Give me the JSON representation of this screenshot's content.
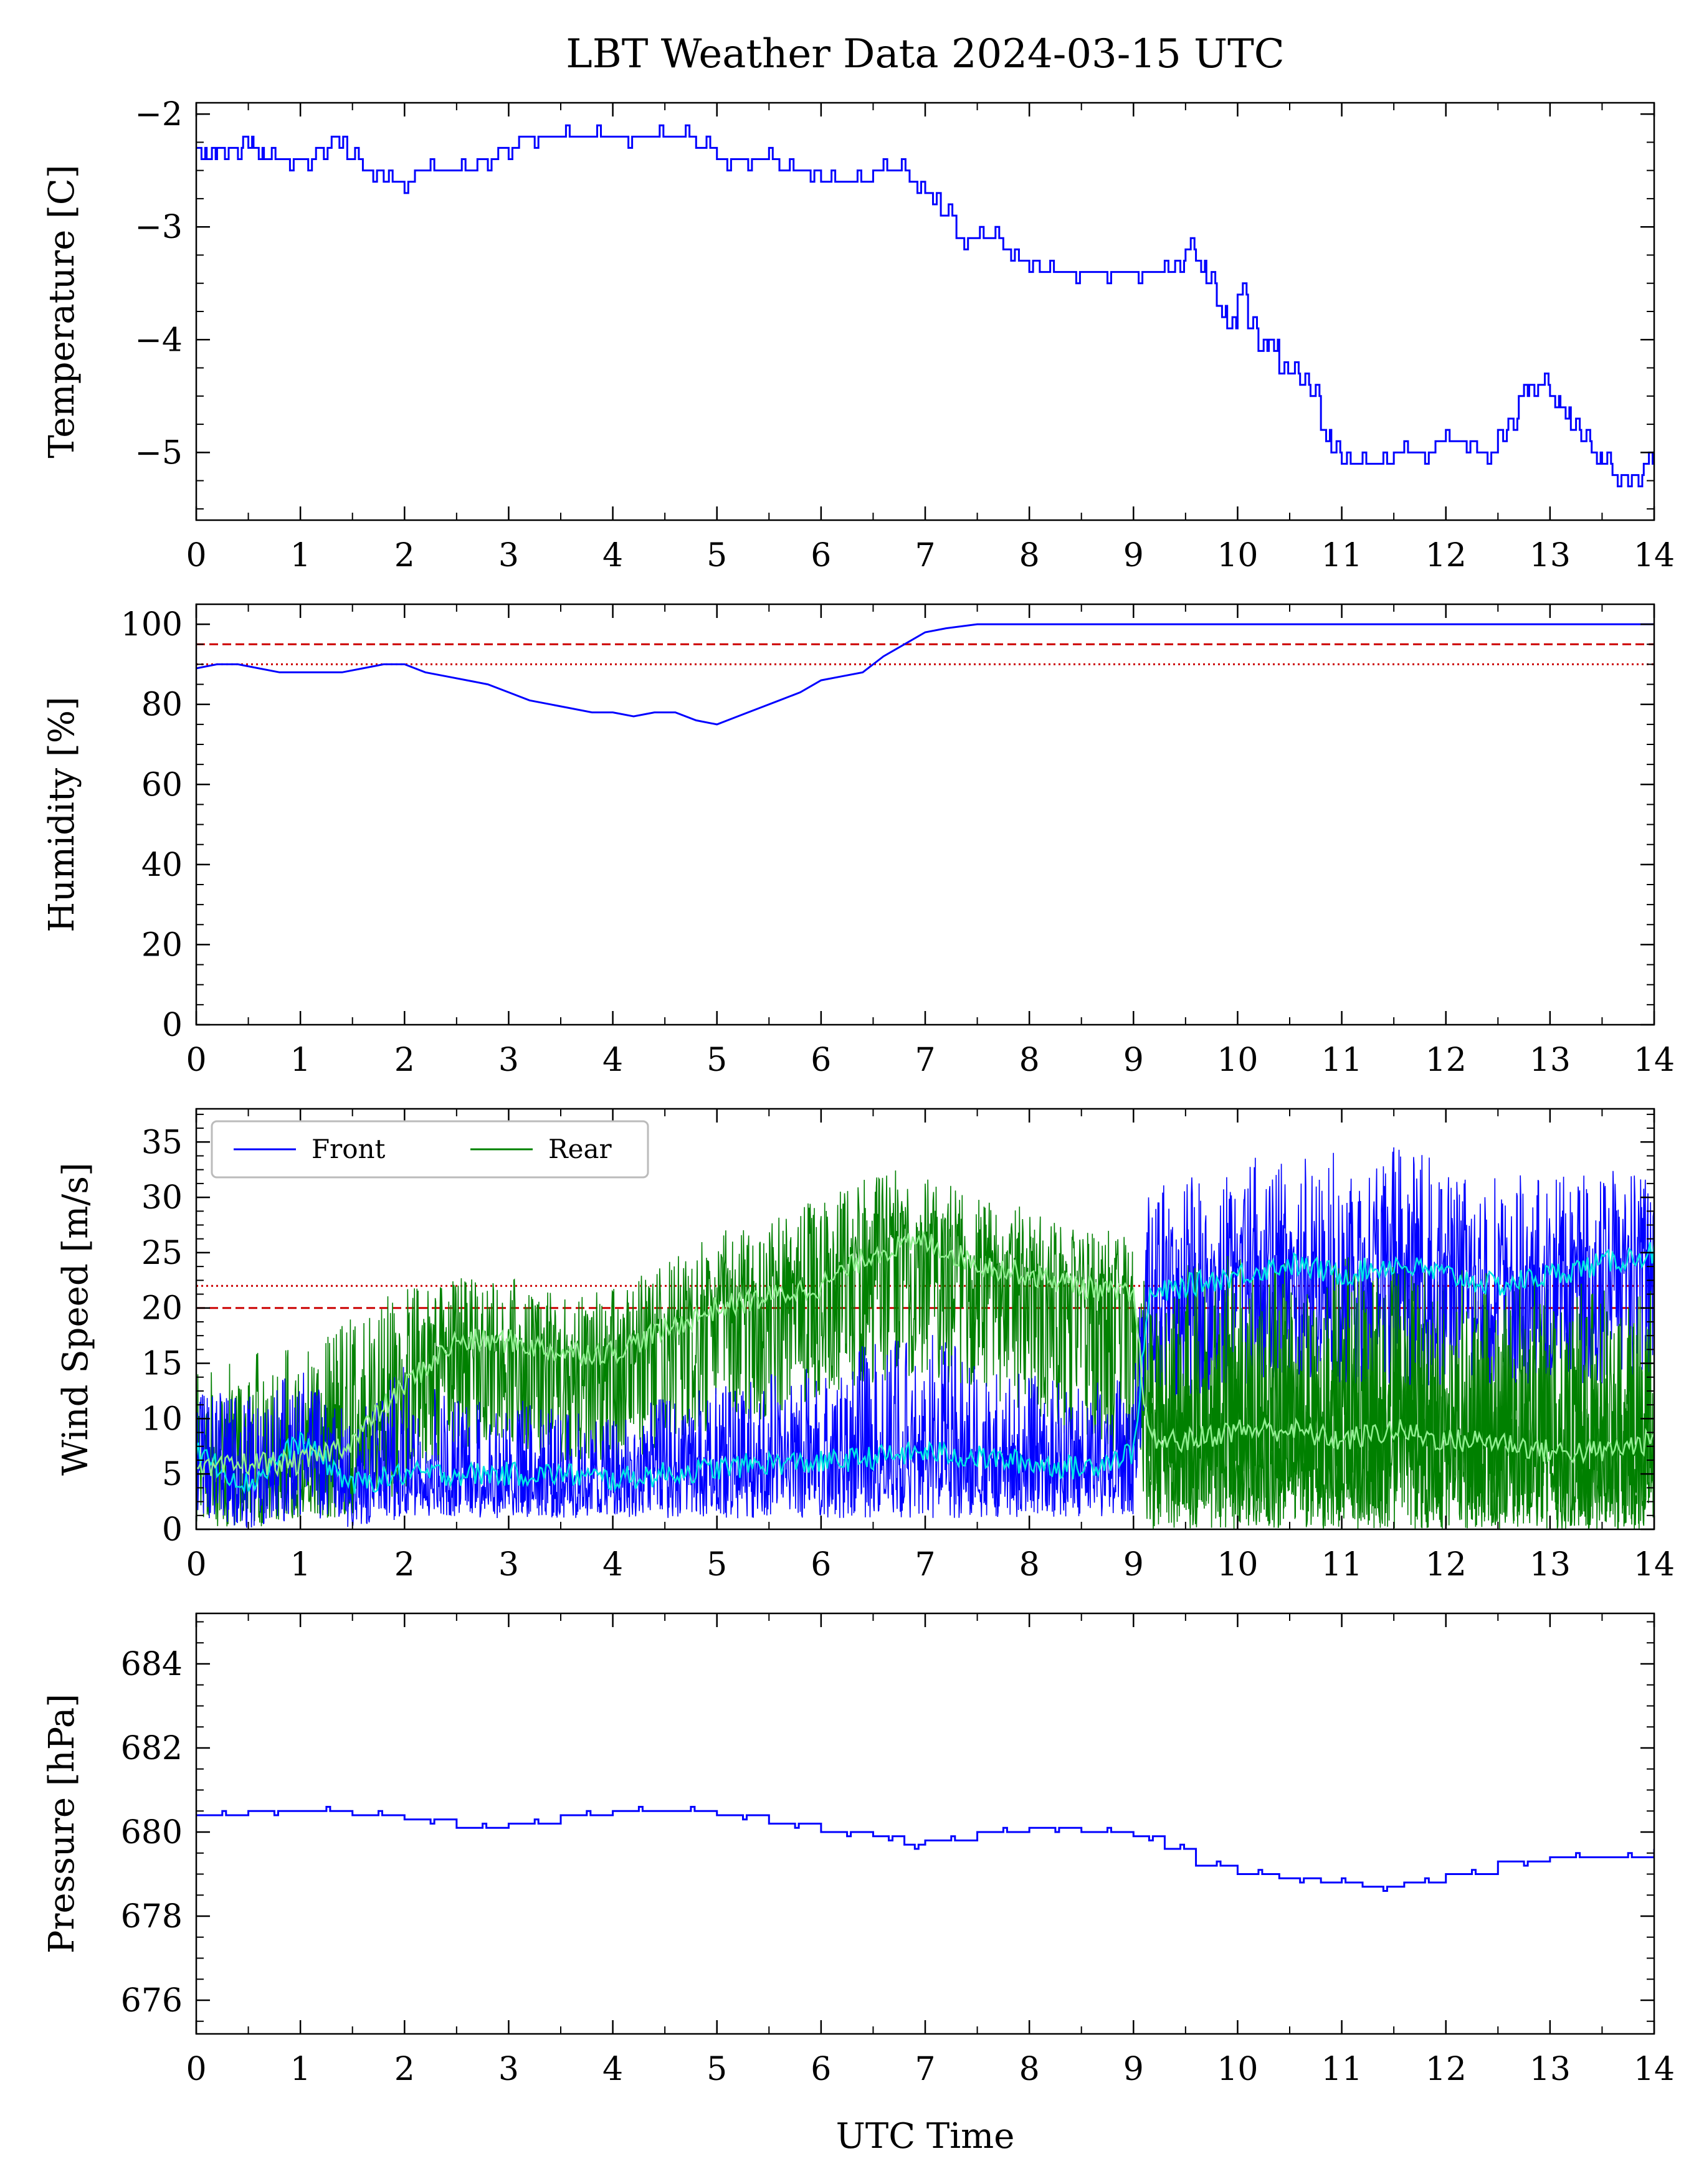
{
  "figure": {
    "title": "LBT Weather Data 2024-03-15 UTC",
    "xlabel": "UTC Time"
  },
  "colors": {
    "front": "#0000ff",
    "rear": "#008000",
    "front_smooth": "#00e5e5",
    "rear_smooth": "#90ee90",
    "threshold": "#cc0000",
    "axes": "#000000"
  },
  "chart_data": [
    {
      "type": "line",
      "ylabel": "Temperature [C]",
      "xlim": [
        0,
        14
      ],
      "ylim": [
        -5.6,
        -1.9
      ],
      "xticks": [
        "0",
        "1",
        "2",
        "3",
        "4",
        "5",
        "6",
        "7",
        "8",
        "9",
        "10",
        "11",
        "12",
        "13",
        "14"
      ],
      "yticks": [
        {
          "value": -5,
          "label": "−5"
        },
        {
          "value": -4,
          "label": "−4"
        },
        {
          "value": -3,
          "label": "−3"
        },
        {
          "value": -2,
          "label": "−2"
        }
      ],
      "series": [
        {
          "style": "step",
          "color": "#0000ff",
          "x": [
            0,
            0.1,
            0.2,
            0.35,
            0.45,
            0.55,
            0.65,
            0.8,
            1.0,
            1.15,
            1.3,
            1.45,
            1.6,
            1.8,
            1.9,
            2.1,
            2.4,
            2.7,
            2.9,
            3.1,
            3.4,
            3.7,
            4.0,
            4.3,
            4.6,
            4.8,
            5.0,
            5.2,
            5.4,
            5.6,
            5.8,
            6.0,
            6.2,
            6.5,
            6.7,
            6.85,
            7.0,
            7.15,
            7.3,
            7.45,
            7.6,
            7.75,
            7.9,
            8.1,
            8.3,
            8.6,
            8.9,
            9.2,
            9.4,
            9.5,
            9.6,
            9.7,
            9.8,
            9.9,
            10.0,
            10.1,
            10.2,
            10.3,
            10.4,
            10.5,
            10.6,
            10.7,
            10.8,
            10.9,
            11.0,
            11.1,
            11.3,
            11.5,
            11.7,
            11.9,
            12.1,
            12.3,
            12.5,
            12.6,
            12.7,
            12.8,
            12.9,
            13.0,
            13.1,
            13.2,
            13.3,
            13.4,
            13.5,
            13.6,
            13.7,
            13.8,
            13.9,
            14.0
          ],
          "y": [
            -2.3,
            -2.4,
            -2.3,
            -2.3,
            -2.2,
            -2.3,
            -2.4,
            -2.4,
            -2.4,
            -2.3,
            -2.2,
            -2.4,
            -2.5,
            -2.6,
            -2.6,
            -2.5,
            -2.5,
            -2.4,
            -2.3,
            -2.2,
            -2.2,
            -2.2,
            -2.2,
            -2.2,
            -2.2,
            -2.3,
            -2.4,
            -2.4,
            -2.4,
            -2.5,
            -2.5,
            -2.6,
            -2.6,
            -2.5,
            -2.5,
            -2.6,
            -2.7,
            -2.9,
            -3.1,
            -3.1,
            -3.1,
            -3.2,
            -3.3,
            -3.4,
            -3.4,
            -3.4,
            -3.4,
            -3.4,
            -3.3,
            -3.2,
            -3.3,
            -3.5,
            -3.7,
            -3.9,
            -3.6,
            -3.9,
            -4.1,
            -4.0,
            -4.3,
            -4.3,
            -4.4,
            -4.5,
            -4.8,
            -5.0,
            -5.1,
            -5.1,
            -5.1,
            -5.0,
            -5.0,
            -4.9,
            -4.9,
            -5.0,
            -4.8,
            -4.7,
            -4.5,
            -4.4,
            -4.4,
            -4.5,
            -4.6,
            -4.8,
            -4.9,
            -5.0,
            -5.1,
            -5.2,
            -5.2,
            -5.2,
            -5.1,
            -5.1
          ]
        }
      ]
    },
    {
      "type": "line",
      "ylabel": "Humidity [%]",
      "xlim": [
        0,
        14
      ],
      "ylim": [
        0,
        105
      ],
      "xticks": [
        "0",
        "1",
        "2",
        "3",
        "4",
        "5",
        "6",
        "7",
        "8",
        "9",
        "10",
        "11",
        "12",
        "13",
        "14"
      ],
      "yticks": [
        {
          "value": 0,
          "label": "0"
        },
        {
          "value": 20,
          "label": "20"
        },
        {
          "value": 40,
          "label": "40"
        },
        {
          "value": 60,
          "label": "60"
        },
        {
          "value": 80,
          "label": "80"
        },
        {
          "value": 100,
          "label": "100"
        }
      ],
      "hlines": [
        {
          "y": 95,
          "style": "dashed",
          "color": "#cc0000"
        },
        {
          "y": 90,
          "style": "dotted",
          "color": "#cc0000"
        }
      ],
      "series": [
        {
          "style": "line",
          "color": "#0000ff",
          "x": [
            0,
            0.2,
            0.4,
            0.6,
            0.8,
            1.0,
            1.2,
            1.4,
            1.6,
            1.8,
            2.0,
            2.2,
            2.4,
            2.6,
            2.8,
            3.0,
            3.2,
            3.4,
            3.6,
            3.8,
            4.0,
            4.2,
            4.4,
            4.6,
            4.8,
            5.0,
            5.2,
            5.4,
            5.6,
            5.8,
            6.0,
            6.2,
            6.4,
            6.6,
            6.8,
            7.0,
            7.2,
            7.5,
            8.0,
            9.0,
            10.0,
            11.0,
            12.0,
            13.0,
            14.0
          ],
          "y": [
            89,
            90,
            90,
            89,
            88,
            88,
            88,
            88,
            89,
            90,
            90,
            88,
            87,
            86,
            85,
            83,
            81,
            80,
            79,
            78,
            78,
            77,
            78,
            78,
            76,
            75,
            77,
            79,
            81,
            83,
            86,
            87,
            88,
            92,
            95,
            98,
            99,
            100,
            100,
            100,
            100,
            100,
            100,
            100,
            100
          ]
        }
      ]
    },
    {
      "type": "line",
      "ylabel": "Wind Speed [m/s]",
      "xlim": [
        0,
        14
      ],
      "ylim": [
        0,
        38
      ],
      "xticks": [
        "0",
        "1",
        "2",
        "3",
        "4",
        "5",
        "6",
        "7",
        "8",
        "9",
        "10",
        "11",
        "12",
        "13",
        "14"
      ],
      "yticks": [
        {
          "value": 0,
          "label": "0"
        },
        {
          "value": 5,
          "label": "5"
        },
        {
          "value": 10,
          "label": "10"
        },
        {
          "value": 15,
          "label": "15"
        },
        {
          "value": 20,
          "label": "20"
        },
        {
          "value": 25,
          "label": "25"
        },
        {
          "value": 30,
          "label": "30"
        },
        {
          "value": 35,
          "label": "35"
        }
      ],
      "hlines": [
        {
          "y": 22,
          "style": "dotted",
          "color": "#cc0000"
        },
        {
          "y": 20,
          "style": "dashed",
          "color": "#cc0000"
        }
      ],
      "legend": {
        "location": "upper-left",
        "entries": [
          "Front",
          "Rear"
        ]
      },
      "x": [
        0,
        0.5,
        1.0,
        1.5,
        2.0,
        2.5,
        3.0,
        3.5,
        4.0,
        4.5,
        5.0,
        5.5,
        6.0,
        6.5,
        7.0,
        7.5,
        8.0,
        8.5,
        9.0,
        9.15,
        9.5,
        10.0,
        10.5,
        11.0,
        11.5,
        12.0,
        12.5,
        13.0,
        13.5,
        14.0
      ],
      "series": [
        {
          "name": "Front",
          "color": "#0000ff",
          "smooth_color": "#00e5e5",
          "mean": [
            7,
            4,
            8,
            4,
            5,
            5,
            5,
            5,
            4.5,
            5,
            5.5,
            6,
            6,
            6.5,
            7,
            6.5,
            6,
            5.5,
            7,
            21,
            22,
            23,
            24,
            23,
            24,
            23,
            22,
            23,
            24,
            25
          ],
          "band": [
            [
              1,
              13
            ],
            [
              0,
              12
            ],
            [
              1,
              15
            ],
            [
              0,
              10
            ],
            [
              1,
              15
            ],
            [
              1,
              12
            ],
            [
              1,
              12
            ],
            [
              1,
              11
            ],
            [
              1,
              10
            ],
            [
              1,
              12
            ],
            [
              1,
              13
            ],
            [
              1,
              14
            ],
            [
              1,
              15
            ],
            [
              1,
              17
            ],
            [
              1,
              18
            ],
            [
              1,
              16
            ],
            [
              1,
              14
            ],
            [
              1,
              13
            ],
            [
              1,
              14
            ],
            [
              12,
              31
            ],
            [
              12,
              32
            ],
            [
              13,
              33
            ],
            [
              14,
              35
            ],
            [
              13,
              34
            ],
            [
              13,
              35
            ],
            [
              13,
              33
            ],
            [
              13,
              32
            ],
            [
              13,
              32
            ],
            [
              13,
              33
            ],
            [
              14,
              33
            ]
          ]
        },
        {
          "name": "Rear",
          "color": "#008000",
          "smooth_color": "#90ee90",
          "mean": [
            5,
            6,
            6,
            8,
            13,
            17,
            17,
            16,
            16,
            18,
            20,
            21,
            22,
            25,
            26,
            24,
            23,
            22,
            21,
            8,
            8,
            9,
            9,
            8,
            9,
            8,
            8,
            7,
            7,
            8
          ],
          "band": [
            [
              0,
              14
            ],
            [
              0,
              16
            ],
            [
              1,
              17
            ],
            [
              1,
              20
            ],
            [
              3,
              22
            ],
            [
              7,
              23
            ],
            [
              8,
              23
            ],
            [
              6,
              21
            ],
            [
              5,
              22
            ],
            [
              7,
              24
            ],
            [
              9,
              27
            ],
            [
              10,
              28
            ],
            [
              12,
              30
            ],
            [
              13,
              32
            ],
            [
              14,
              33
            ],
            [
              12,
              30
            ],
            [
              10,
              29
            ],
            [
              8,
              27
            ],
            [
              6,
              27
            ],
            [
              0,
              22
            ],
            [
              0,
              24
            ],
            [
              0,
              25
            ],
            [
              0,
              24
            ],
            [
              0,
              25
            ],
            [
              0,
              24
            ],
            [
              0,
              24
            ],
            [
              0,
              23
            ],
            [
              0,
              23
            ],
            [
              0,
              22
            ],
            [
              0,
              22
            ]
          ]
        }
      ]
    },
    {
      "type": "line",
      "ylabel": "Pressure [hPa]",
      "xlim": [
        0,
        14
      ],
      "ylim": [
        675.2,
        685.2
      ],
      "xticks": [
        "0",
        "1",
        "2",
        "3",
        "4",
        "5",
        "6",
        "7",
        "8",
        "9",
        "10",
        "11",
        "12",
        "13",
        "14"
      ],
      "yticks": [
        {
          "value": 676,
          "label": "676"
        },
        {
          "value": 678,
          "label": "678"
        },
        {
          "value": 680,
          "label": "680"
        },
        {
          "value": 682,
          "label": "682"
        },
        {
          "value": 684,
          "label": "684"
        }
      ],
      "series": [
        {
          "style": "step",
          "color": "#0000ff",
          "x": [
            0,
            0.5,
            1.0,
            1.5,
            2.0,
            2.5,
            3.0,
            3.5,
            4.0,
            4.5,
            5.0,
            5.5,
            6.0,
            6.5,
            6.8,
            7.0,
            7.5,
            8.0,
            8.5,
            9.0,
            9.3,
            9.6,
            10.0,
            10.4,
            10.8,
            11.2,
            11.6,
            12.0,
            12.5,
            13.0,
            13.5,
            14.0
          ],
          "y": [
            680.4,
            680.5,
            680.5,
            680.4,
            680.3,
            680.1,
            680.2,
            680.4,
            680.5,
            680.5,
            680.4,
            680.2,
            680.0,
            679.9,
            679.7,
            679.8,
            680.0,
            680.1,
            680.0,
            679.9,
            679.6,
            679.2,
            679.0,
            678.9,
            678.8,
            678.7,
            678.8,
            679.0,
            679.3,
            679.4,
            679.4,
            679.6
          ]
        }
      ]
    }
  ]
}
